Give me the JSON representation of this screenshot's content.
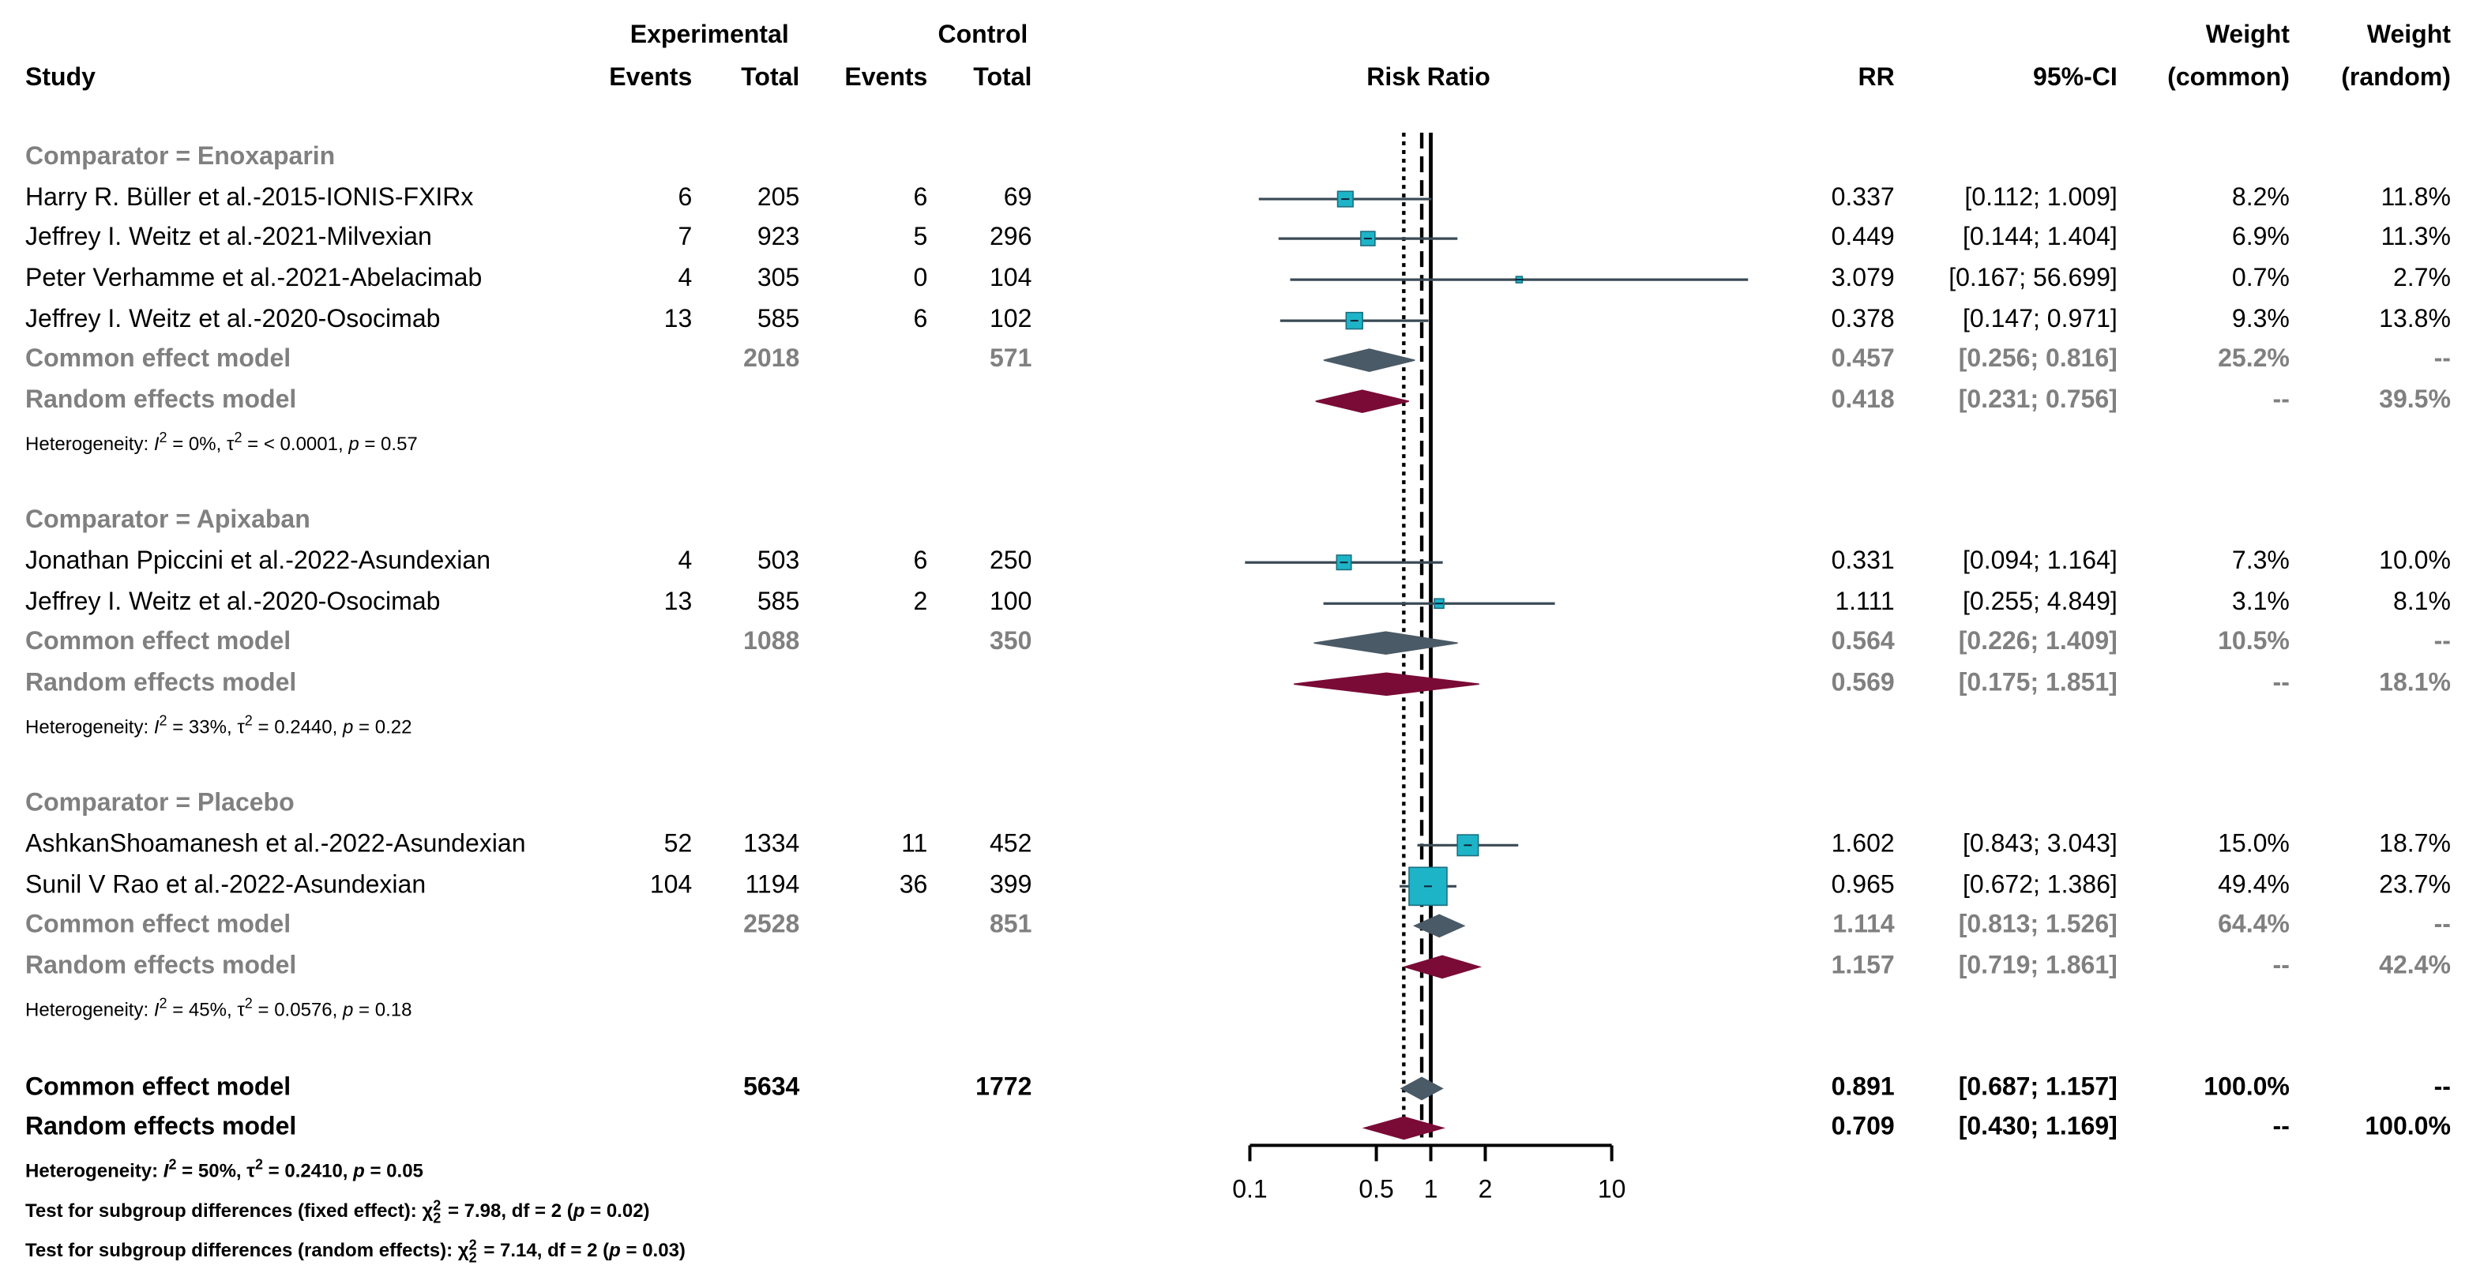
{
  "header": {
    "study": "Study",
    "experimental": "Experimental",
    "control": "Control",
    "events": "Events",
    "total": "Total",
    "events2": "Events",
    "total2": "Total",
    "risk_ratio": "Risk Ratio",
    "rr": "RR",
    "ci": "95%-CI",
    "weight1_top": "Weight",
    "weight1_bottom": "(common)",
    "weight2_top": "Weight",
    "weight2_bottom": "(random)"
  },
  "groups": [
    {
      "title": "Comparator = Enoxaparin",
      "studies": [
        {
          "name": "Harry R. Büller et al.-2015-IONIS-FXIRx",
          "e_events": "6",
          "e_total": "205",
          "c_events": "6",
          "c_total": "69",
          "rr": "0.337",
          "ci": "[0.112;  1.009]",
          "w_common": "8.2%",
          "w_random": "11.8%"
        },
        {
          "name": "Jeffrey I. Weitz et al.-2021-Milvexian",
          "e_events": "7",
          "e_total": "923",
          "c_events": "5",
          "c_total": "296",
          "rr": "0.449",
          "ci": "[0.144;  1.404]",
          "w_common": "6.9%",
          "w_random": "11.3%"
        },
        {
          "name": "Peter Verhamme et al.-2021-Abelacimab",
          "e_events": "4",
          "e_total": "305",
          "c_events": "0",
          "c_total": "104",
          "rr": "3.079",
          "ci": "[0.167; 56.699]",
          "w_common": "0.7%",
          "w_random": "2.7%"
        },
        {
          "name": "Jeffrey I. Weitz et al.-2020-Osocimab",
          "e_events": "13",
          "e_total": "585",
          "c_events": "6",
          "c_total": "102",
          "rr": "0.378",
          "ci": "[0.147;  0.971]",
          "w_common": "9.3%",
          "w_random": "13.8%"
        }
      ],
      "common": {
        "label": "Common effect model",
        "e_total": "2018",
        "c_total": "571",
        "rr": "0.457",
        "ci": "[0.256;  0.816]",
        "w_common": "25.2%",
        "w_random": "--"
      },
      "random": {
        "label": "Random effects model",
        "rr": "0.418",
        "ci": "[0.231;  0.756]",
        "w_common": "--",
        "w_random": "39.5%"
      },
      "het": {
        "a": "Heterogeneity: ",
        "b": "I",
        "c": "2",
        "d": " = 0%, τ",
        "e": "2",
        "f": " = < 0.0001, ",
        "g": "p",
        "h": " = 0.57"
      }
    },
    {
      "title": "Comparator = Apixaban",
      "studies": [
        {
          "name": "Jonathan Ppiccini et al.-2022-Asundexian",
          "e_events": "4",
          "e_total": "503",
          "c_events": "6",
          "c_total": "250",
          "rr": "0.331",
          "ci": "[0.094;  1.164]",
          "w_common": "7.3%",
          "w_random": "10.0%"
        },
        {
          "name": "Jeffrey I. Weitz et al.-2020-Osocimab",
          "e_events": "13",
          "e_total": "585",
          "c_events": "2",
          "c_total": "100",
          "rr": "1.111",
          "ci": "[0.255;  4.849]",
          "w_common": "3.1%",
          "w_random": "8.1%"
        }
      ],
      "common": {
        "label": "Common effect model",
        "e_total": "1088",
        "c_total": "350",
        "rr": "0.564",
        "ci": "[0.226;  1.409]",
        "w_common": "10.5%",
        "w_random": "--"
      },
      "random": {
        "label": "Random effects model",
        "rr": "0.569",
        "ci": "[0.175;  1.851]",
        "w_common": "--",
        "w_random": "18.1%"
      },
      "het": {
        "a": "Heterogeneity: ",
        "b": "I",
        "c": "2",
        "d": " = 33%, τ",
        "e": "2",
        "f": " = 0.2440, ",
        "g": "p",
        "h": " = 0.22"
      }
    },
    {
      "title": "Comparator = Placebo",
      "studies": [
        {
          "name": "AshkanShoamanesh et al.-2022-Asundexian",
          "e_events": "52",
          "e_total": "1334",
          "c_events": "11",
          "c_total": "452",
          "rr": "1.602",
          "ci": "[0.843;  3.043]",
          "w_common": "15.0%",
          "w_random": "18.7%"
        },
        {
          "name": "Sunil V Rao et al.-2022-Asundexian",
          "e_events": "104",
          "e_total": "1194",
          "c_events": "36",
          "c_total": "399",
          "rr": "0.965",
          "ci": "[0.672;  1.386]",
          "w_common": "49.4%",
          "w_random": "23.7%"
        }
      ],
      "common": {
        "label": "Common effect model",
        "e_total": "2528",
        "c_total": "851",
        "rr": "1.114",
        "ci": "[0.813;  1.526]",
        "w_common": "64.4%",
        "w_random": "--"
      },
      "random": {
        "label": "Random effects model",
        "rr": "1.157",
        "ci": "[0.719;  1.861]",
        "w_common": "--",
        "w_random": "42.4%"
      },
      "het": {
        "a": "Heterogeneity: ",
        "b": "I",
        "c": "2",
        "d": " = 45%, τ",
        "e": "2",
        "f": " = 0.0576, ",
        "g": "p",
        "h": " = 0.18"
      }
    }
  ],
  "overall": {
    "common": {
      "label": "Common effect model",
      "e_total": "5634",
      "c_total": "1772",
      "rr": "0.891",
      "ci": "[0.687;  1.157]",
      "w_common": "100.0%",
      "w_random": "--"
    },
    "random": {
      "label": "Random effects model",
      "rr": "0.709",
      "ci": "[0.430;  1.169]",
      "w_common": "--",
      "w_random": "100.0%"
    },
    "het": {
      "a": "Heterogeneity: ",
      "b": "I",
      "c": "2",
      "d": " = 50%, τ",
      "e": "2",
      "f": " = 0.2410, ",
      "g": "p",
      "h": " = 0.05"
    },
    "test_fixed": {
      "a": "Test for subgroup differences (fixed effect): χ",
      "sup": "2",
      "sub": "2",
      "b": " = 7.98, df = 2 (",
      "p": "p",
      "c": " = 0.02)"
    },
    "test_random": {
      "a": "Test for subgroup differences (random effects): χ",
      "sup": "2",
      "sub": "2",
      "b": " = 7.14, df = 2 (",
      "p": "p",
      "c": " = 0.03)"
    }
  },
  "chart_data": {
    "type": "forest",
    "title": "Risk Ratio",
    "xscale": "log",
    "xlim": [
      0.1,
      10
    ],
    "ticks": [
      0.1,
      0.5,
      1,
      2,
      10
    ],
    "tick_labels": [
      "0.1",
      "0.5",
      "1",
      "2",
      "10"
    ],
    "null_value": 1,
    "ref_common": 0.891,
    "ref_random": 0.709,
    "studies": [
      {
        "rr": 0.337,
        "lo": 0.112,
        "hi": 1.009,
        "weight": 8.2
      },
      {
        "rr": 0.449,
        "lo": 0.144,
        "hi": 1.404,
        "weight": 6.9
      },
      {
        "rr": 3.079,
        "lo": 0.167,
        "hi": 56.699,
        "weight": 0.7
      },
      {
        "rr": 0.378,
        "lo": 0.147,
        "hi": 0.971,
        "weight": 9.3
      },
      {
        "rr": 0.331,
        "lo": 0.094,
        "hi": 1.164,
        "weight": 7.3
      },
      {
        "rr": 1.111,
        "lo": 0.255,
        "hi": 4.849,
        "weight": 3.1
      },
      {
        "rr": 1.602,
        "lo": 0.843,
        "hi": 3.043,
        "weight": 15.0
      },
      {
        "rr": 0.965,
        "lo": 0.672,
        "hi": 1.386,
        "weight": 49.4
      }
    ],
    "diamonds": [
      {
        "kind": "common",
        "rr": 0.457,
        "lo": 0.256,
        "hi": 0.816
      },
      {
        "kind": "random",
        "rr": 0.418,
        "lo": 0.231,
        "hi": 0.756,
        "pi": [
          0.231,
          0.756
        ]
      },
      {
        "kind": "common",
        "rr": 0.564,
        "lo": 0.226,
        "hi": 1.409
      },
      {
        "kind": "random",
        "rr": 0.569,
        "lo": 0.175,
        "hi": 1.851
      },
      {
        "kind": "common",
        "rr": 1.114,
        "lo": 0.813,
        "hi": 1.526
      },
      {
        "kind": "random",
        "rr": 1.157,
        "lo": 0.719,
        "hi": 1.861
      },
      {
        "kind": "common",
        "rr": 0.891,
        "lo": 0.687,
        "hi": 1.157
      },
      {
        "kind": "random",
        "rr": 0.709,
        "lo": 0.43,
        "hi": 1.169
      }
    ],
    "colors": {
      "square": "#1eb4c8",
      "common_diamond": "#4a5a66",
      "random_diamond": "#7a0b36",
      "ci_line": "#3a4a55"
    }
  }
}
